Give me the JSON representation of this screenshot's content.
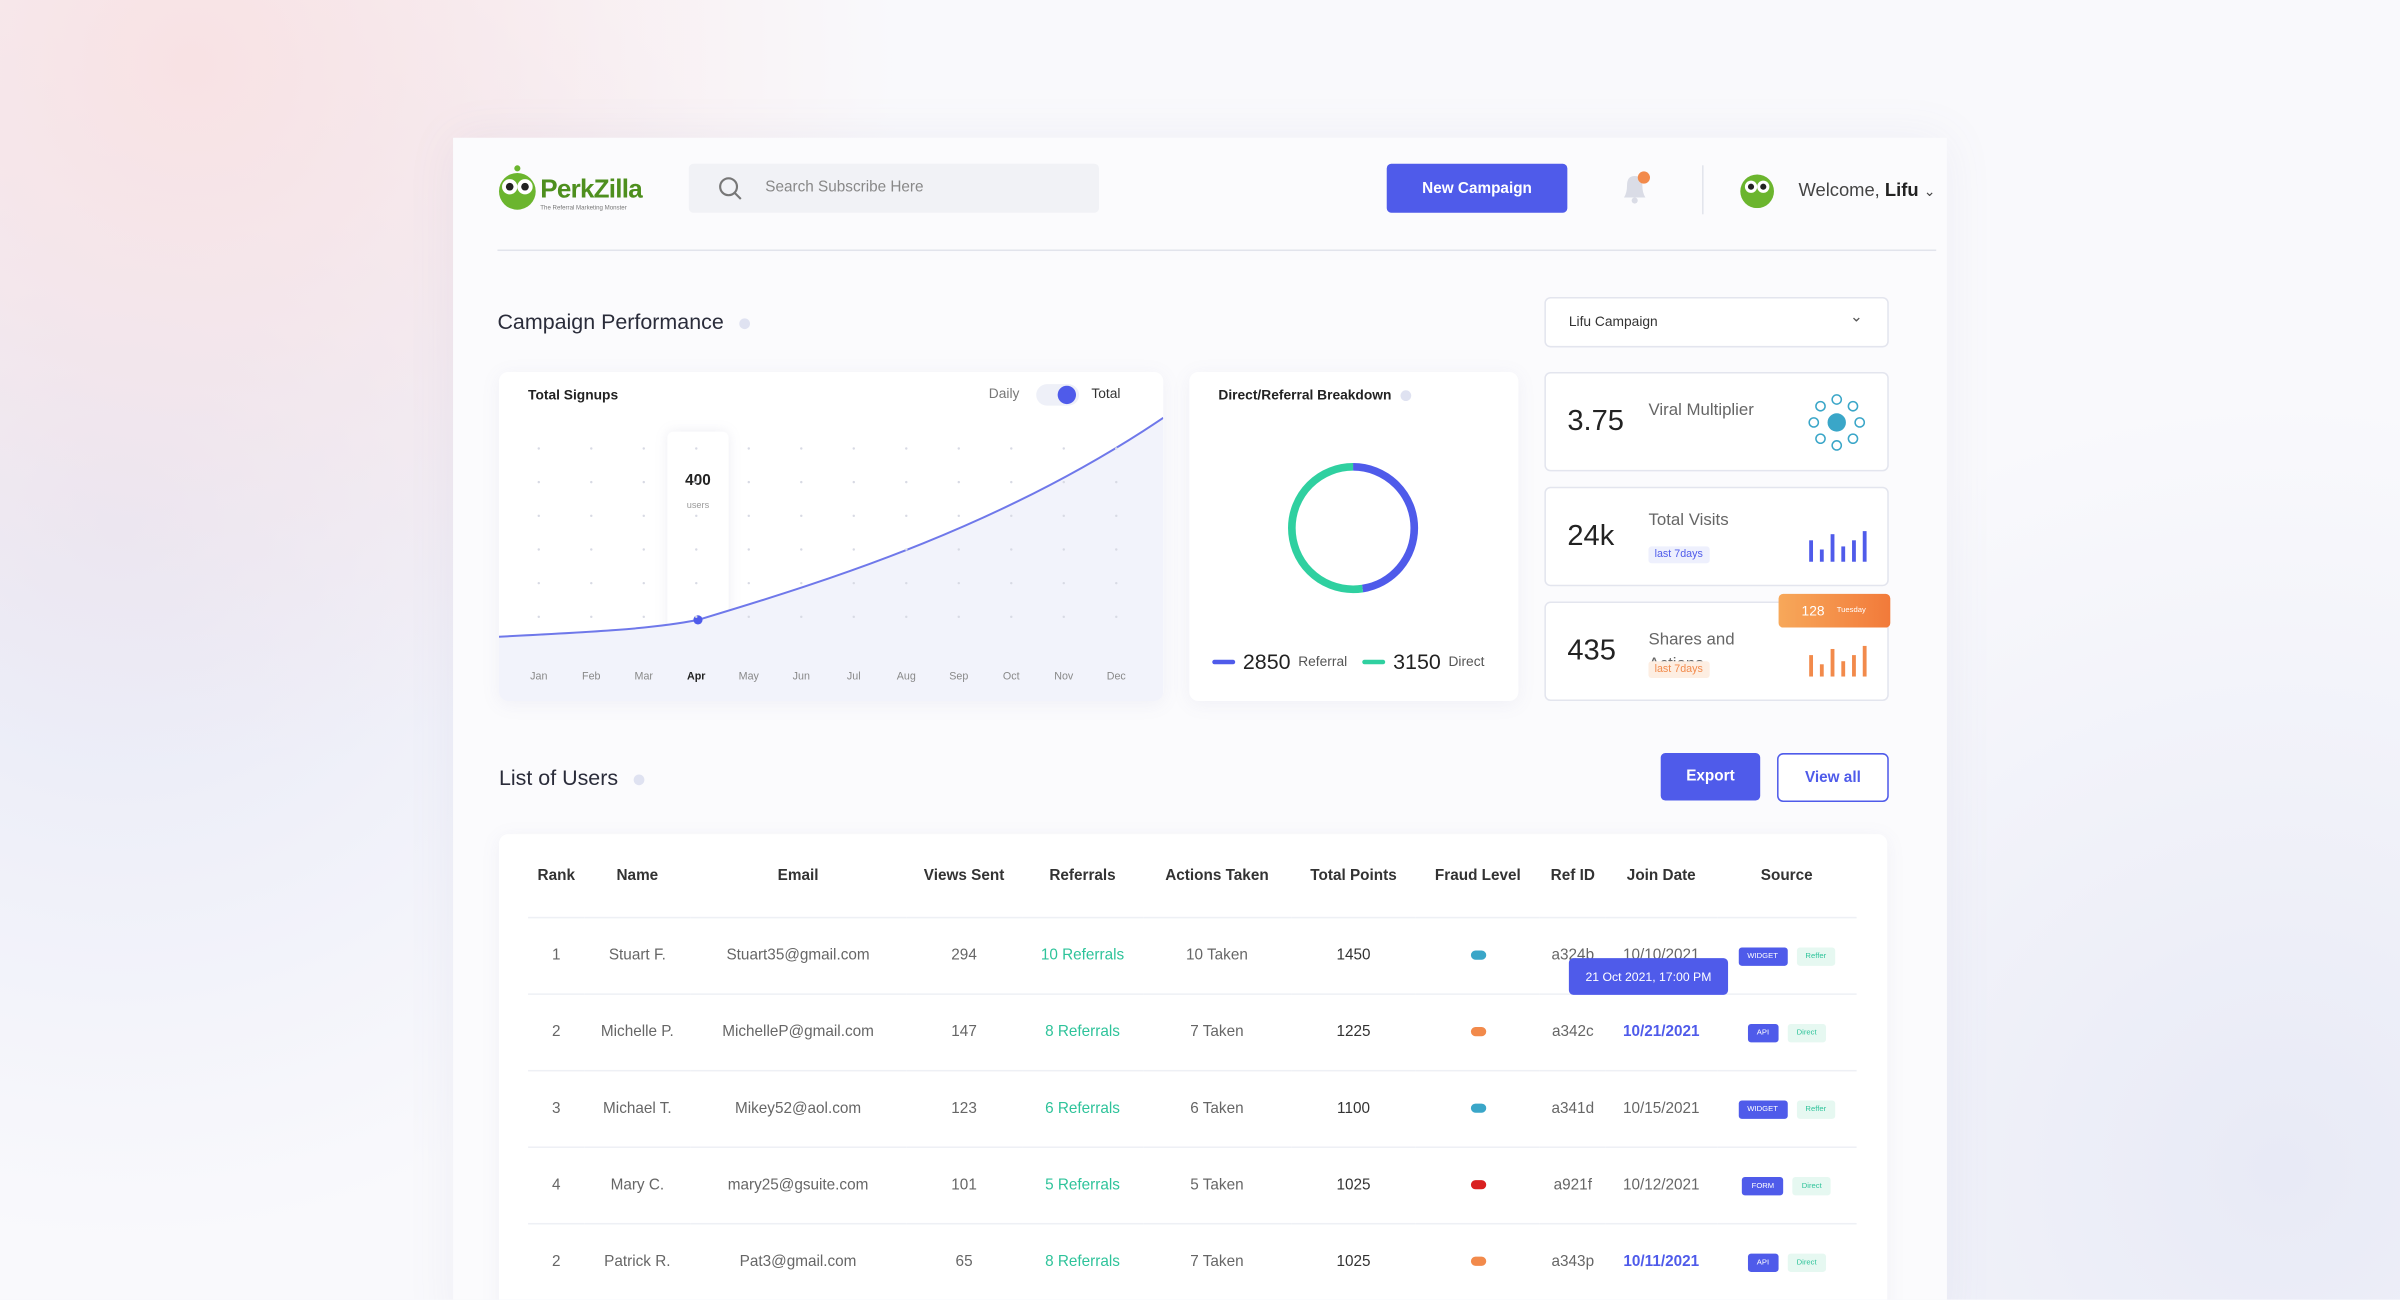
{
  "header": {
    "logo": "PerkZilla",
    "tagline": "The Referral Marketing Monster",
    "search_placeholder": "Search Subscribe Here",
    "new_campaign": "New Campaign",
    "welcome": "Welcome,",
    "user": "Lifu"
  },
  "performance": {
    "title": "Campaign Performance",
    "campaign_select": "Lifu Campaign",
    "signups": {
      "title": "Total Signups",
      "toggle": [
        "Daily",
        "Total"
      ],
      "months": [
        "Jan",
        "Feb",
        "Mar",
        "Apr",
        "May",
        "Jun",
        "Jul",
        "Aug",
        "Sep",
        "Oct",
        "Nov",
        "Dec"
      ],
      "tooltip": {
        "value": 400,
        "unit": "users"
      }
    },
    "breakdown": {
      "title": "Direct/Referral Breakdown",
      "series": [
        {
          "value": 2850,
          "label": "Referral",
          "color": "#4f5bea"
        },
        {
          "value": 3150,
          "label": "Direct",
          "color": "#2fd0a0"
        }
      ]
    },
    "stats": [
      {
        "value": 3.75,
        "label": "Viral Multiplier"
      },
      {
        "value": "24k",
        "label": "Total Visits",
        "badge": "last 7days"
      },
      {
        "value": 435,
        "label": "Shares and Actions",
        "badge": "last 7days",
        "tooltip": {
          "value": 128,
          "label": "Tuesday"
        }
      }
    ]
  },
  "users": {
    "title": "List of Users",
    "export": "Export",
    "view_all": "View all",
    "date_tooltip": "21 Oct 2021, 17:00 PM",
    "columns": [
      "Rank",
      "Name",
      "Email",
      "Views Sent",
      "Referrals",
      "Actions Taken",
      "Total Points",
      "Fraud Level",
      "Ref ID",
      "Join Date",
      "Source"
    ],
    "rows": [
      {
        "rank": 1,
        "name": "Stuart F.",
        "email": "Stuart35@gmail.com",
        "views": 294,
        "referrals": "10 Referrals",
        "actions": "10 Taken",
        "points": 1450,
        "fraud": "#3aa6c8",
        "ref_id": "a324b",
        "join_date": "10/10/2021",
        "source": "WIDGET",
        "channel": "Reffer"
      },
      {
        "rank": 2,
        "name": "Michelle P.",
        "email": "MichelleP@gmail.com",
        "views": 147,
        "referrals": "8 Referrals",
        "actions": "7 Taken",
        "points": 1225,
        "fraud": "#f28a4b",
        "ref_id": "a342c",
        "join_date": "10/21/2021",
        "source": "API",
        "channel": "Direct"
      },
      {
        "rank": 3,
        "name": "Michael T.",
        "email": "Mikey52@aol.com",
        "views": 123,
        "referrals": "6 Referrals",
        "actions": "6 Taken",
        "points": 1100,
        "fraud": "#3aa6c8",
        "ref_id": "a341d",
        "join_date": "10/15/2021",
        "source": "WIDGET",
        "channel": "Reffer"
      },
      {
        "rank": 4,
        "name": "Mary C.",
        "email": "mary25@gsuite.com",
        "views": 101,
        "referrals": "5 Referrals",
        "actions": "5 Taken",
        "points": 1025,
        "fraud": "#d92020",
        "ref_id": "a921f",
        "join_date": "10/12/2021",
        "source": "FORM",
        "channel": "Direct"
      },
      {
        "rank": 2,
        "name": "Patrick R.",
        "email": "Pat3@gmail.com",
        "views": 65,
        "referrals": "8 Referrals",
        "actions": "7 Taken",
        "points": 1025,
        "fraud": "#f28a4b",
        "ref_id": "a343p",
        "join_date": "10/11/2021",
        "source": "API",
        "channel": "Direct"
      }
    ]
  }
}
